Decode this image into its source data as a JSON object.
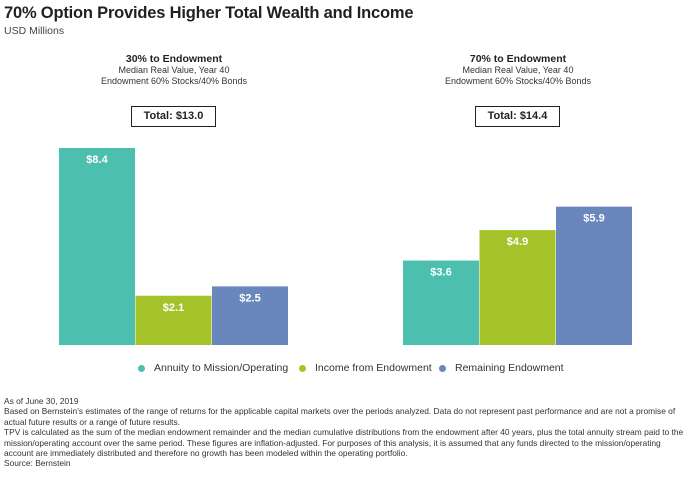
{
  "header": {
    "title": "70% Option Provides Higher Total Wealth and Income",
    "subtitle": "USD Millions"
  },
  "panels": [
    {
      "title": "30% to Endowment",
      "line1": "Median Real Value, Year 40",
      "line2": "Endowment 60% Stocks/40% Bonds",
      "total": "Total: $13.0"
    },
    {
      "title": "70% to Endowment",
      "line1": "Median Real Value, Year 40",
      "line2": "Endowment 60% Stocks/40% Bonds",
      "total": "Total: $14.4"
    }
  ],
  "chart_data": {
    "type": "bar",
    "groups": [
      "30% to Endowment",
      "70% to Endowment"
    ],
    "series": [
      {
        "name": "Annuity to Mission/Operating",
        "color": "#4dbfae",
        "values": [
          8.4,
          3.6
        ],
        "labels": [
          "$8.4",
          "$3.6"
        ]
      },
      {
        "name": "Income from Endowment",
        "color": "#a6c22b",
        "values": [
          2.1,
          4.9
        ],
        "labels": [
          "$2.1",
          "$4.9"
        ]
      },
      {
        "name": "Remaining Endowment",
        "color": "#6a87bd",
        "values": [
          2.5,
          5.9
        ],
        "labels": [
          "$2.5",
          "$5.9"
        ]
      }
    ],
    "totals": [
      13.0,
      14.4
    ],
    "ylim": [
      0,
      8.4
    ],
    "grid": false,
    "legend": "bottom"
  },
  "footnotes": [
    "As of June 30, 2019",
    "Based on Bernstein’s estimates of the range of returns for the applicable capital markets over the periods analyzed. Data do not represent past performance and are not a promise of actual future results or a range of future results.",
    "TPV is calculated as the sum of the median endowment remainder and the median cumulative distributions from the endowment after 40 years, plus the total annuity stream paid to the mission/operating account over the same period. These figures are inflation-adjusted. For purposes of this analysis, it is assumed that any funds directed to the mission/operating account are immediately distributed and therefore no growth has been modeled within the operating portfolio.",
    "Source: Bernstein"
  ]
}
